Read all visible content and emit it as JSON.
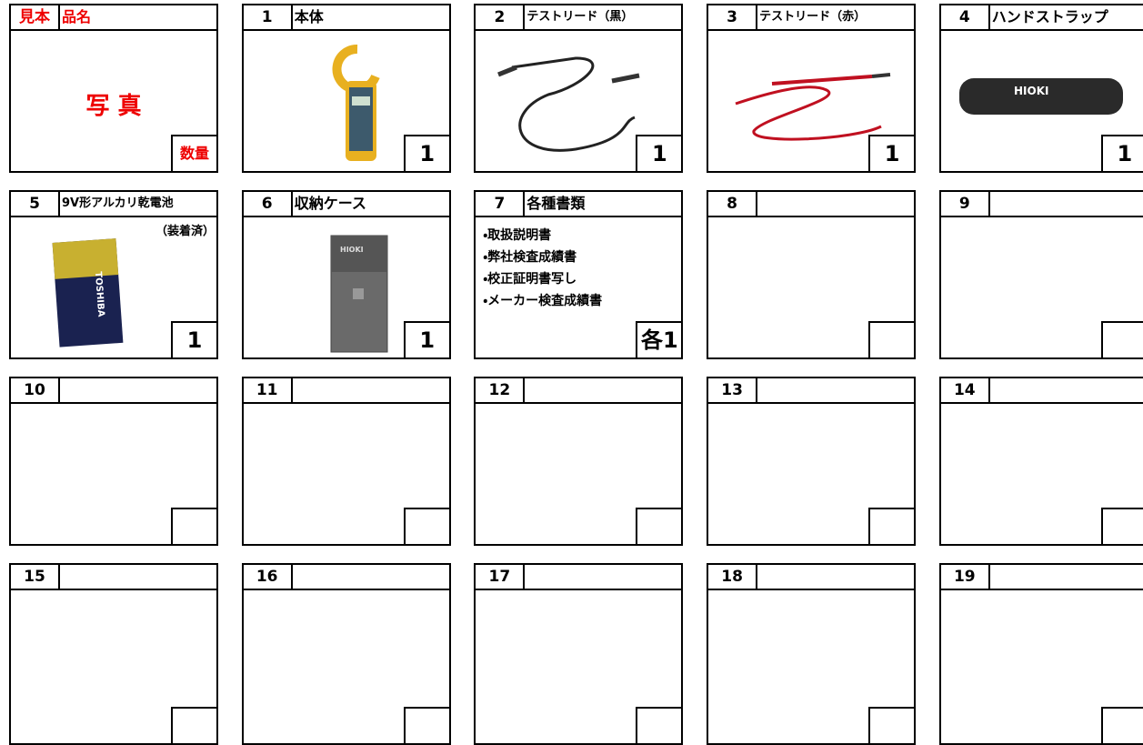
{
  "sample": {
    "label": "見本",
    "name": "品名",
    "photo": "写 真",
    "quantity_label": "数量"
  },
  "items": [
    {
      "number": "1",
      "name": "本体",
      "quantity": "1"
    },
    {
      "number": "2",
      "name": "テストリード（黒）",
      "quantity": "1"
    },
    {
      "number": "3",
      "name": "テストリード（赤）",
      "quantity": "1"
    },
    {
      "number": "4",
      "name": "ハンドストラップ",
      "quantity": "1"
    },
    {
      "number": "5",
      "name": "9V形アルカリ乾電池",
      "note": "（装着済）",
      "quantity": "1"
    },
    {
      "number": "6",
      "name": "収納ケース",
      "quantity": "1"
    },
    {
      "number": "7",
      "name": "各種書類",
      "documents": [
        "・取扱説明書",
        "・弊社検査成績書",
        "・校正証明書写し",
        "・メーカー検査成績書"
      ],
      "quantity": "各1"
    },
    {
      "number": "8"
    },
    {
      "number": "9"
    },
    {
      "number": "10"
    },
    {
      "number": "11"
    },
    {
      "number": "12"
    },
    {
      "number": "13"
    },
    {
      "number": "14"
    },
    {
      "number": "15"
    },
    {
      "number": "16"
    },
    {
      "number": "17"
    },
    {
      "number": "18"
    },
    {
      "number": "19"
    }
  ]
}
